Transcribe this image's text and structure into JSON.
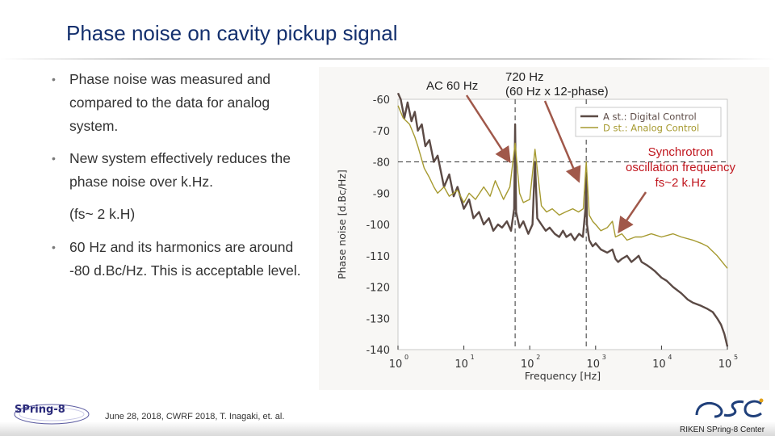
{
  "slide": {
    "title": "Phase noise on cavity pickup signal",
    "bullets": [
      "Phase noise was measured and compared to the data for analog system.",
      "New system effectively reduces the phase noise over k.Hz.",
      "60 Hz and its harmonics are around -80 d.Bc/Hz. This is acceptable level."
    ],
    "subnote": "(fs~ 2 k.H)",
    "bullet_glyph": "•"
  },
  "annotations": {
    "ac60": "AC 60 Hz",
    "h720_line1": "720 Hz",
    "h720_line2": "(60 Hz x 12-phase)",
    "synch_line1": "Synchrotron",
    "synch_line2": "oscillation frequency",
    "synch_line3": "fs~2 k.Hz",
    "arrow_color": "#a0584a"
  },
  "chart_data": {
    "type": "line",
    "xlabel": "Frequency [Hz]",
    "ylabel": "Phase noise [d.Bc/Hz]",
    "xscale": "log",
    "xlim": [
      1,
      100000
    ],
    "ylim": [
      -140,
      -60
    ],
    "x_ticks": [
      "10",
      "10",
      "10",
      "10",
      "10",
      "10"
    ],
    "x_tick_exponents": [
      "0",
      "1",
      "2",
      "3",
      "4",
      "5"
    ],
    "y_ticks": [
      "-60",
      "-70",
      "-80",
      "-90",
      "-100",
      "-110",
      "-120",
      "-130",
      "-140"
    ],
    "reference_lines": {
      "hz_60": 60,
      "hz_720": 720,
      "dbc_minus80": -80
    },
    "legend_position": "top-right",
    "series": [
      {
        "name": "A st.: Digital Control",
        "color": "#5b4a45",
        "x": [
          1,
          1.1,
          1.25,
          1.4,
          1.6,
          1.8,
          2,
          2.3,
          2.6,
          3,
          3.5,
          4,
          5,
          6,
          7,
          8,
          10,
          12,
          14,
          17,
          20,
          24,
          28,
          33,
          38,
          45,
          52,
          58,
          60,
          62,
          70,
          80,
          95,
          110,
          120,
          130,
          150,
          175,
          200,
          240,
          280,
          320,
          360,
          420,
          480,
          560,
          640,
          700,
          720,
          740,
          800,
          900,
          1000,
          1200,
          1500,
          1800,
          2000,
          2200,
          2500,
          3000,
          3500,
          4000,
          4500,
          5000,
          6000,
          7000,
          8000,
          10000,
          12000,
          15000,
          20000,
          25000,
          30000,
          40000,
          50000,
          60000,
          70000,
          80000,
          90000,
          100000
        ],
        "y": [
          -58,
          -60,
          -66,
          -61,
          -67,
          -64,
          -70,
          -68,
          -75,
          -73,
          -80,
          -78,
          -88,
          -84,
          -91,
          -88,
          -95,
          -92,
          -98,
          -96,
          -100,
          -98,
          -102,
          -100,
          -101,
          -99,
          -102,
          -95,
          -68,
          -96,
          -101,
          -99,
          -103,
          -100,
          -80,
          -98,
          -100,
          -102,
          -101,
          -103,
          -104,
          -102,
          -104,
          -103,
          -105,
          -103,
          -104,
          -95,
          -85,
          -100,
          -105,
          -107,
          -106,
          -108,
          -109,
          -108,
          -111,
          -112,
          -111,
          -110,
          -112,
          -111,
          -110,
          -112,
          -113,
          -114,
          -115,
          -117,
          -118,
          -120,
          -122,
          -124,
          -125,
          -126,
          -127,
          -128,
          -130,
          -132,
          -135,
          -139
        ]
      },
      {
        "name": "D st.: Analog Control",
        "color": "#a69a30",
        "x": [
          1,
          1.2,
          1.5,
          1.8,
          2,
          2.5,
          3,
          3.5,
          4,
          5,
          6,
          8,
          10,
          12,
          15,
          20,
          25,
          30,
          40,
          50,
          60,
          70,
          80,
          100,
          120,
          150,
          180,
          220,
          280,
          350,
          450,
          550,
          650,
          720,
          800,
          900,
          1000,
          1200,
          1500,
          1800,
          2000,
          2500,
          3000,
          4000,
          5000,
          7000,
          10000,
          15000,
          20000,
          30000,
          40000,
          50000,
          70000,
          100000
        ],
        "y": [
          -62,
          -66,
          -68,
          -72,
          -75,
          -82,
          -85,
          -88,
          -90,
          -88,
          -91,
          -89,
          -93,
          -90,
          -92,
          -88,
          -91,
          -86,
          -92,
          -88,
          -74,
          -90,
          -93,
          -92,
          -76,
          -94,
          -96,
          -95,
          -97,
          -96,
          -95,
          -96,
          -95,
          -80,
          -97,
          -99,
          -100,
          -102,
          -101,
          -99,
          -104,
          -103,
          -105,
          -104,
          -104,
          -103,
          -104,
          -103,
          -104,
          -105,
          -106,
          -107,
          -110,
          -114
        ]
      }
    ]
  },
  "footer": {
    "citation": "June 28, 2018, CWRF 2018,   T. Inagaki, et. al.",
    "org": "RIKEN SPring-8 Center",
    "logo_left_text": "SPring-8"
  }
}
